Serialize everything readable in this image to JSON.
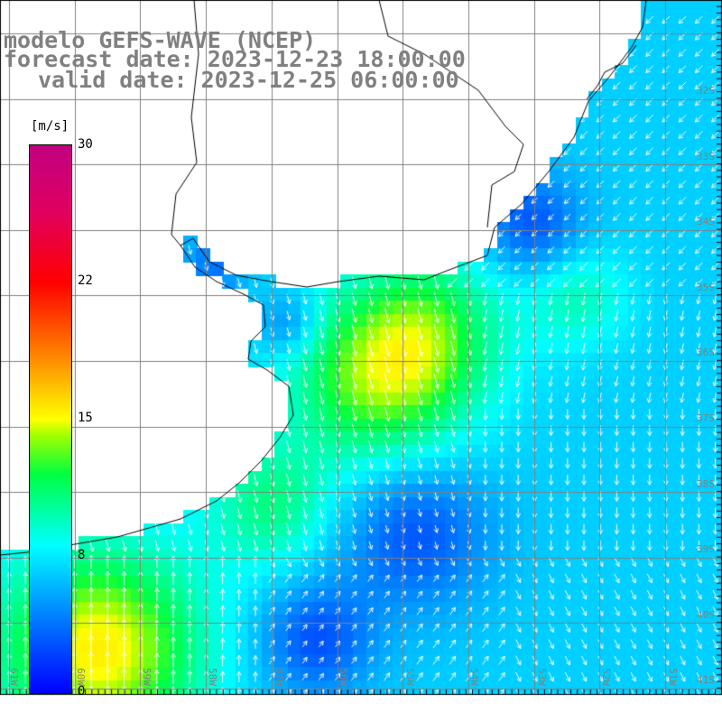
{
  "title": {
    "line1": "modelo GEFS-WAVE (NCEP)",
    "line2": "forecast date: 2023-12-23 18:00:00",
    "line3": "valid date: 2023-12-25 06:00:00"
  },
  "colorbar": {
    "unit": "[m/s]",
    "labels": [
      "30",
      "22",
      "15",
      "8",
      "0"
    ]
  },
  "lon_labels": [
    "61W",
    "60W",
    "59W",
    "58W",
    "57W",
    "56W",
    "55W",
    "54W",
    "53W",
    "52W",
    "51W"
  ],
  "lat_labels": [
    "32S",
    "33S",
    "34S",
    "35S",
    "36S",
    "37S",
    "38S",
    "39S",
    "40S",
    "41S"
  ],
  "colors": {
    "title": "#808080",
    "grid": "#808080",
    "coast": "#000000",
    "arrow": "#ffffff"
  }
}
